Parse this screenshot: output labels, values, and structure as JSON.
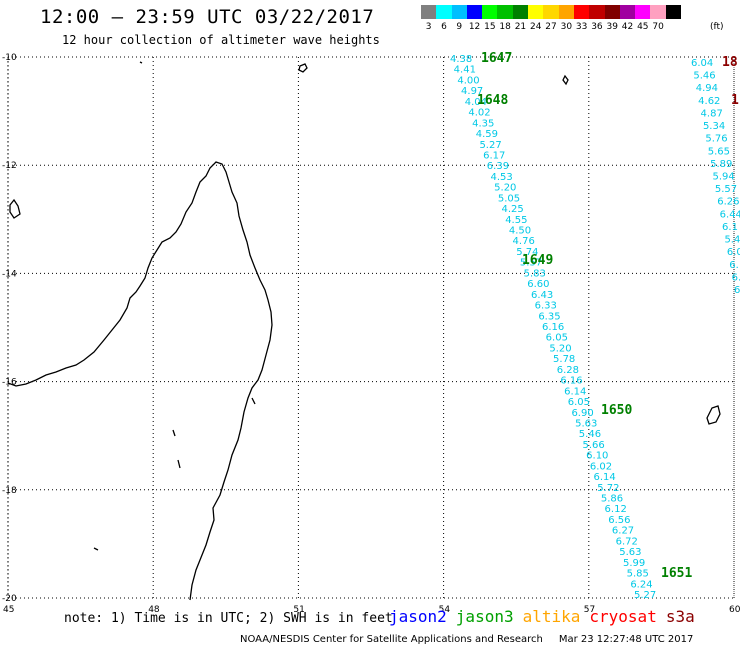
{
  "title": "12:00 – 23:59 UTC 03/22/2017",
  "subtitle": "12 hour collection of altimeter wave heights",
  "scale": {
    "unit": "(ft)",
    "bins": [
      {
        "label": "3",
        "color": "#808080"
      },
      {
        "label": "6",
        "color": "#00ffff"
      },
      {
        "label": "9",
        "color": "#00bfff"
      },
      {
        "label": "12",
        "color": "#0000ff"
      },
      {
        "label": "15",
        "color": "#00ff00"
      },
      {
        "label": "18",
        "color": "#00c000"
      },
      {
        "label": "21",
        "color": "#008000"
      },
      {
        "label": "24",
        "color": "#ffff00"
      },
      {
        "label": "27",
        "color": "#ffd700"
      },
      {
        "label": "30",
        "color": "#ffa500"
      },
      {
        "label": "33",
        "color": "#ff0000"
      },
      {
        "label": "36",
        "color": "#c00000"
      },
      {
        "label": "39",
        "color": "#800000"
      },
      {
        "label": "42",
        "color": "#a000a0"
      },
      {
        "label": "45",
        "color": "#ff00ff"
      },
      {
        "label": "70",
        "color": "#ffa0c0"
      },
      {
        "label": "",
        "color": "#000000"
      }
    ]
  },
  "map": {
    "lat_labels": [
      "-10",
      "-12",
      "-14",
      "-16",
      "-18",
      "-20"
    ],
    "lon_labels": [
      "45",
      "48",
      "51",
      "54",
      "57",
      "60"
    ],
    "lat_range": [
      -20,
      -10
    ],
    "lon_range": [
      45,
      60
    ]
  },
  "tracks": [
    {
      "color": "#00c8e6",
      "values": [
        "4.38",
        "4.41",
        "4.00",
        "4.97",
        "4.04",
        "4.02",
        "4.35",
        "4.59",
        "5.27",
        "6.17",
        "6.39",
        "4.53",
        "5.20",
        "5.05",
        "4.25",
        "4.55",
        "4.50",
        "4.76",
        "5.74",
        "5.57",
        "5.83",
        "6.60",
        "6.43",
        "6.33",
        "6.35",
        "6.16",
        "6.05",
        "5.20",
        "5.78",
        "6.28",
        "6.16",
        "6.14",
        "6.05",
        "6.90",
        "5.63",
        "5.46",
        "5.66",
        "6.10",
        "6.02",
        "6.14",
        "5.72",
        "5.86",
        "6.12",
        "6.56",
        "6.27",
        "6.72",
        "5.63",
        "5.99",
        "5.85",
        "6.24",
        "5.27"
      ]
    },
    {
      "color": "#00c8e6",
      "values": [
        "6.04",
        "5.46",
        "4.94",
        "4.62",
        "4.87",
        "5.34",
        "5.76",
        "5.65",
        "5.89",
        "5.94",
        "5.57",
        "6.26",
        "6.44",
        "6.1",
        "5.4",
        "6.0",
        "6.",
        "6.",
        "6"
      ]
    }
  ],
  "time_marks": [
    {
      "label": "1647",
      "color": "#008000"
    },
    {
      "label": "1648",
      "color": "#008000"
    },
    {
      "label": "1649",
      "color": "#008000"
    },
    {
      "label": "1650",
      "color": "#008000"
    },
    {
      "label": "1651",
      "color": "#008000"
    },
    {
      "label": "18",
      "color": "#8b0000"
    },
    {
      "label": "1",
      "color": "#8b0000"
    }
  ],
  "note": "note: 1) Time is in UTC; 2) SWH is in feet",
  "legend": [
    {
      "label": "jason2",
      "color": "#0000ff"
    },
    {
      "label": "jason3",
      "color": "#00a000"
    },
    {
      "label": "altika",
      "color": "#ffa500"
    },
    {
      "label": "cryosat",
      "color": "#ff0000"
    },
    {
      "label": "s3a",
      "color": "#8b0000"
    }
  ],
  "credit": "NOAA/NESDIS Center for Satellite Applications and Research",
  "timestamp": "Mar 23 12:27:48 UTC 2017"
}
